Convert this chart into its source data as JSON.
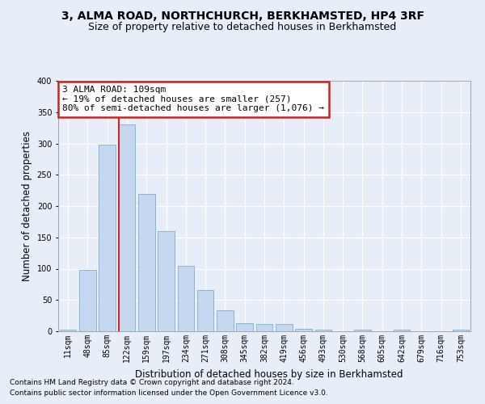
{
  "title": "3, ALMA ROAD, NORTHCHURCH, BERKHAMSTED, HP4 3RF",
  "subtitle": "Size of property relative to detached houses in Berkhamsted",
  "xlabel": "Distribution of detached houses by size in Berkhamsted",
  "ylabel": "Number of detached properties",
  "footnote1": "Contains HM Land Registry data © Crown copyright and database right 2024.",
  "footnote2": "Contains public sector information licensed under the Open Government Licence v3.0.",
  "bar_labels": [
    "11sqm",
    "48sqm",
    "85sqm",
    "122sqm",
    "159sqm",
    "197sqm",
    "234sqm",
    "271sqm",
    "308sqm",
    "345sqm",
    "382sqm",
    "419sqm",
    "456sqm",
    "493sqm",
    "530sqm",
    "568sqm",
    "605sqm",
    "642sqm",
    "679sqm",
    "716sqm",
    "753sqm"
  ],
  "bar_values": [
    3,
    98,
    298,
    330,
    220,
    160,
    105,
    66,
    34,
    13,
    11,
    11,
    4,
    2,
    0,
    3,
    0,
    3,
    0,
    0,
    2
  ],
  "bar_color": "#c5d8f0",
  "bar_edge_color": "#7aadd4",
  "background_color": "#e8eef8",
  "plot_bg_color": "#e8eef8",
  "grid_color": "#ffffff",
  "annotation_text": "3 ALMA ROAD: 109sqm\n← 19% of detached houses are smaller (257)\n80% of semi-detached houses are larger (1,076) →",
  "annotation_box_facecolor": "#ffffff",
  "annotation_box_edgecolor": "#cc2222",
  "vline_position": 2.57,
  "vline_color": "#cc2222",
  "ylim": [
    0,
    400
  ],
  "yticks": [
    0,
    50,
    100,
    150,
    200,
    250,
    300,
    350,
    400
  ],
  "title_fontsize": 10,
  "subtitle_fontsize": 9,
  "xlabel_fontsize": 8.5,
  "ylabel_fontsize": 8.5,
  "tick_fontsize": 7,
  "annotation_fontsize": 8,
  "footnote_fontsize": 6.5
}
